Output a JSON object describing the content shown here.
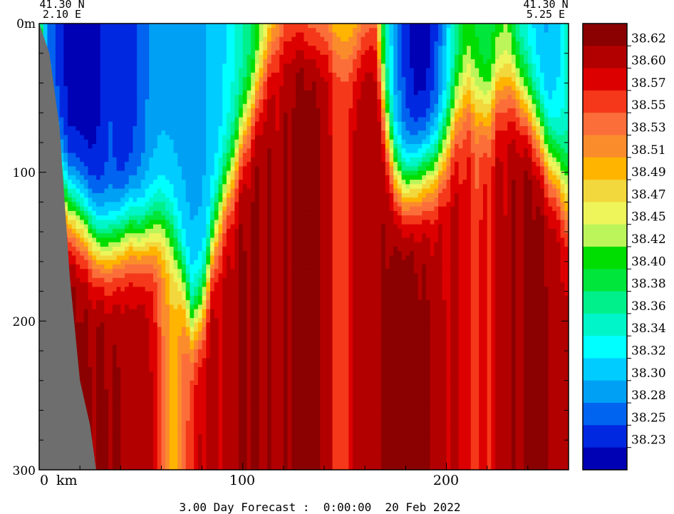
{
  "chart_data": {
    "type": "heatmap",
    "title": "",
    "caption": "3.00 Day Forecast :  0:00:00  20 Feb 2022",
    "corner_left": {
      "lat": "41.30 N",
      "lon": "2.10 E"
    },
    "corner_right": {
      "lat": "41.30 N",
      "lon": "5.25 E"
    },
    "x_axis": {
      "unit_label": "km",
      "range": [
        0,
        260
      ],
      "ticks": [
        0,
        100,
        200
      ],
      "tick_labels": [
        "0",
        "100",
        "200"
      ]
    },
    "y_axis": {
      "top_label": "0m",
      "range": [
        0,
        300
      ],
      "reversed": true,
      "ticks": [
        0,
        100,
        200,
        300
      ],
      "tick_labels": [
        "0m",
        "100",
        "200",
        "300"
      ]
    },
    "colorbar": {
      "labels": [
        "38.62",
        "38.60",
        "38.57",
        "38.55",
        "38.53",
        "38.51",
        "38.49",
        "38.47",
        "38.45",
        "38.42",
        "38.40",
        "38.38",
        "38.36",
        "38.34",
        "38.32",
        "38.30",
        "38.28",
        "38.25",
        "38.23"
      ],
      "colors": [
        "#8b0000",
        "#b20000",
        "#dd0000",
        "#f5381a",
        "#fb6e3a",
        "#fb8c2c",
        "#ffb400",
        "#f2d83c",
        "#eef55a",
        "#bcf55a",
        "#00dd00",
        "#00e63a",
        "#00f08c",
        "#00f5c8",
        "#00ffff",
        "#00ccff",
        "#00a0f5",
        "#0064f0",
        "#0028e1",
        "#0000b4"
      ],
      "min": 38.22,
      "max": 38.64
    },
    "field_profiles": {
      "x_km": [
        0,
        5,
        10,
        15,
        20,
        25,
        30,
        35,
        40,
        45,
        50,
        55,
        60,
        65,
        70,
        75,
        80,
        85,
        90,
        95,
        100,
        105,
        110,
        115,
        120,
        125,
        130,
        135,
        140,
        145,
        150,
        155,
        160,
        165,
        170,
        175,
        180,
        185,
        190,
        195,
        200,
        205,
        210,
        215,
        220,
        225,
        230,
        235,
        240,
        245,
        250,
        255,
        260
      ],
      "surface_psu": [
        38.33,
        38.28,
        38.25,
        38.23,
        38.23,
        38.23,
        38.24,
        38.26,
        38.24,
        38.25,
        38.27,
        38.29,
        38.3,
        38.3,
        38.3,
        38.3,
        38.3,
        38.31,
        38.32,
        38.34,
        38.36,
        38.38,
        38.42,
        38.47,
        38.51,
        38.52,
        38.51,
        38.5,
        38.5,
        38.46,
        38.45,
        38.47,
        38.5,
        38.51,
        38.37,
        38.29,
        38.25,
        38.23,
        38.23,
        38.26,
        38.31,
        38.37,
        38.41,
        38.4,
        38.38,
        38.41,
        38.42,
        38.36,
        38.33,
        38.31,
        38.3,
        38.32,
        38.36
      ],
      "halocline_depth_m": [
        0,
        100,
        110,
        125,
        130,
        140,
        150,
        150,
        145,
        140,
        145,
        140,
        135,
        140,
        165,
        200,
        190,
        150,
        120,
        100,
        75,
        55,
        30,
        15,
        8,
        5,
        8,
        10,
        10,
        8,
        12,
        15,
        8,
        5,
        70,
        100,
        110,
        105,
        100,
        95,
        80,
        60,
        45,
        55,
        60,
        45,
        40,
        45,
        55,
        70,
        90,
        100,
        120
      ],
      "max_psu": [
        38.58,
        38.6,
        38.62,
        38.63,
        38.63,
        38.62,
        38.63,
        38.62,
        38.62,
        38.61,
        38.62,
        38.6,
        38.55,
        38.5,
        38.53,
        38.58,
        38.6,
        38.61,
        38.6,
        38.61,
        38.62,
        38.62,
        38.62,
        38.61,
        38.61,
        38.63,
        38.64,
        38.63,
        38.62,
        38.58,
        38.57,
        38.6,
        38.62,
        38.61,
        38.62,
        38.63,
        38.64,
        38.63,
        38.62,
        38.61,
        38.6,
        38.6,
        38.58,
        38.57,
        38.58,
        38.6,
        38.61,
        38.62,
        38.63,
        38.63,
        38.62,
        38.61,
        38.6
      ]
    },
    "terrain_color": "#6e6e6e",
    "land_edge_x_km": [
      [
        0,
        0
      ],
      [
        5,
        20
      ],
      [
        10,
        70
      ],
      [
        15,
        170
      ],
      [
        20,
        240
      ],
      [
        25,
        270
      ],
      [
        28,
        300
      ]
    ]
  }
}
